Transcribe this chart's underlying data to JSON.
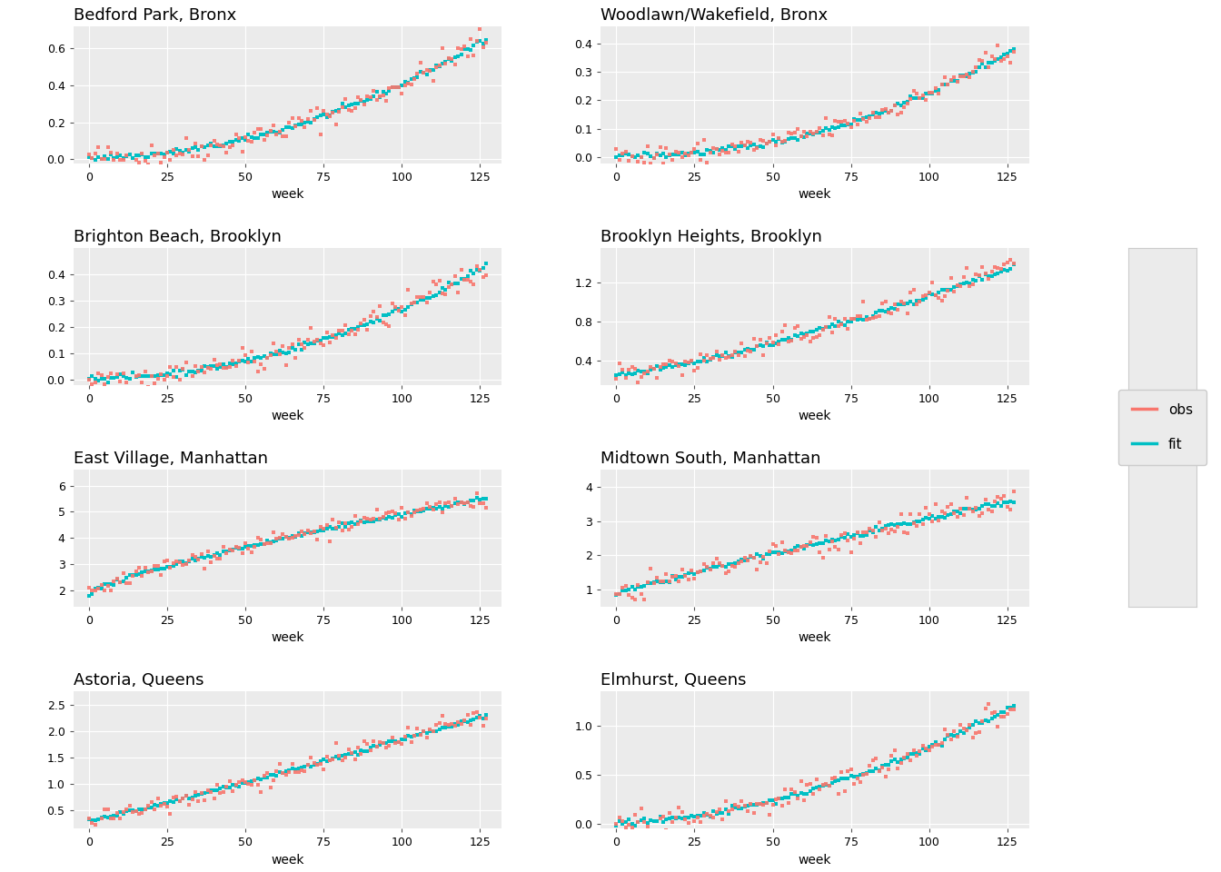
{
  "panels": [
    {
      "title": "Bedford Park, Bronx",
      "ylim": [
        -0.02,
        0.72
      ],
      "yticks": [
        0.0,
        0.2,
        0.4,
        0.6
      ]
    },
    {
      "title": "Woodlawn/Wakefield, Bronx",
      "ylim": [
        -0.02,
        0.46
      ],
      "yticks": [
        0.0,
        0.1,
        0.2,
        0.3,
        0.4
      ]
    },
    {
      "title": "Brighton Beach, Brooklyn",
      "ylim": [
        -0.02,
        0.5
      ],
      "yticks": [
        0.0,
        0.1,
        0.2,
        0.3,
        0.4
      ]
    },
    {
      "title": "Brooklyn Heights, Brooklyn",
      "ylim": [
        0.15,
        1.55
      ],
      "yticks": [
        0.4,
        0.8,
        1.2
      ]
    },
    {
      "title": "East Village, Manhattan",
      "ylim": [
        1.4,
        6.6
      ],
      "yticks": [
        2,
        3,
        4,
        5,
        6
      ]
    },
    {
      "title": "Midtown South, Manhattan",
      "ylim": [
        0.5,
        4.5
      ],
      "yticks": [
        1,
        2,
        3,
        4
      ]
    },
    {
      "title": "Astoria, Queens",
      "ylim": [
        0.15,
        2.75
      ],
      "yticks": [
        0.5,
        1.0,
        1.5,
        2.0,
        2.5
      ]
    },
    {
      "title": "Elmhurst, Queens",
      "ylim": [
        -0.05,
        1.35
      ],
      "yticks": [
        0.0,
        0.5,
        1.0
      ]
    }
  ],
  "n_weeks": 128,
  "obs_color": "#F8766D",
  "fit_color": "#00BFC4",
  "bg_color": "#EBEBEB",
  "grid_color": "#FFFFFF",
  "xlabel": "week",
  "xticks": [
    0,
    25,
    50,
    75,
    100,
    125
  ],
  "title_fontsize": 13,
  "axis_fontsize": 10,
  "tick_fontsize": 9,
  "legend_labels": [
    "obs",
    "fit"
  ]
}
